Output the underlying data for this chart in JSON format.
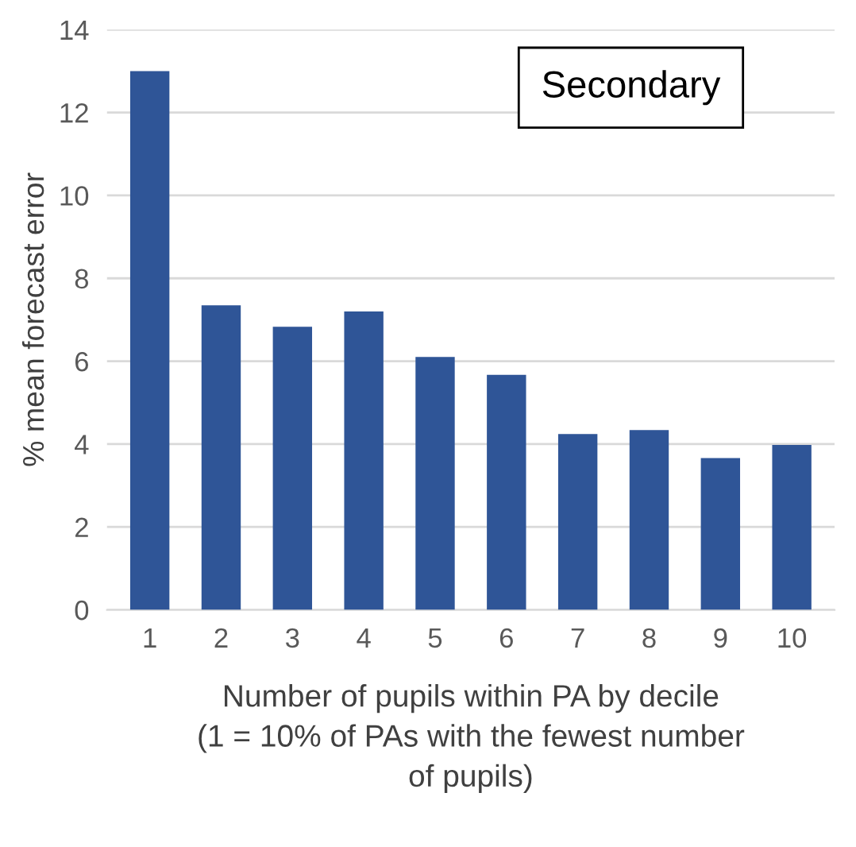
{
  "chart_data": {
    "type": "bar",
    "title": "Secondary",
    "xlabel": "Number of pupils within PA by decile\n(1 = 10% of PAs with the fewest number\nof pupils)",
    "ylabel": "% mean forecast error",
    "categories": [
      "1",
      "2",
      "3",
      "4",
      "5",
      "6",
      "7",
      "8",
      "9",
      "10"
    ],
    "values": [
      13.0,
      7.35,
      6.83,
      7.2,
      6.1,
      5.67,
      4.24,
      4.34,
      3.66,
      3.98
    ],
    "color": "#2f5597",
    "ylim": [
      0,
      14
    ],
    "yticks": [
      0,
      2,
      4,
      6,
      8,
      10,
      12,
      14
    ],
    "grid": "y",
    "legend": false
  }
}
